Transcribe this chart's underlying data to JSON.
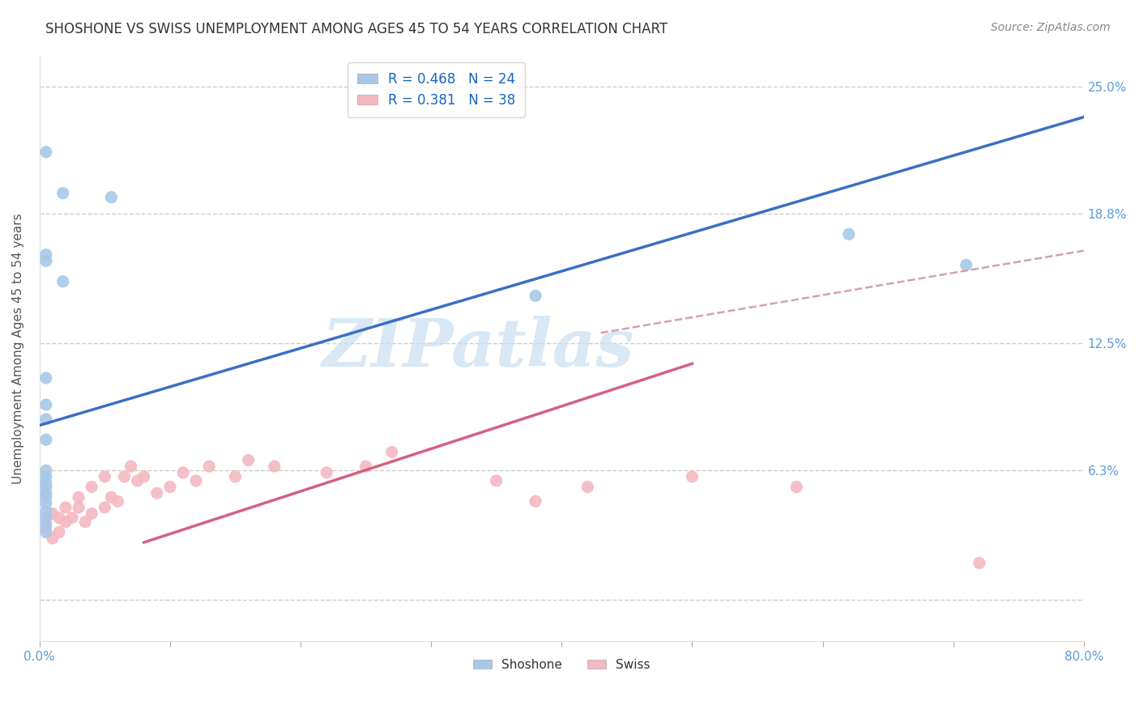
{
  "title": "SHOSHONE VS SWISS UNEMPLOYMENT AMONG AGES 45 TO 54 YEARS CORRELATION CHART",
  "source": "Source: ZipAtlas.com",
  "ylabel": "Unemployment Among Ages 45 to 54 years",
  "xlim": [
    0.0,
    0.8
  ],
  "ylim": [
    -0.02,
    0.265
  ],
  "yticks": [
    0.0,
    0.063,
    0.125,
    0.188,
    0.25
  ],
  "ytick_labels": [
    "",
    "6.3%",
    "12.5%",
    "18.8%",
    "25.0%"
  ],
  "xticks": [
    0.0,
    0.1,
    0.2,
    0.3,
    0.4,
    0.5,
    0.6,
    0.7,
    0.8
  ],
  "xtick_labels": [
    "0.0%",
    "",
    "",
    "",
    "",
    "",
    "",
    "",
    "80.0%"
  ],
  "shoshone_color": "#a8c8e8",
  "swiss_color": "#f4b8c1",
  "shoshone_line_color": "#3a6fc4",
  "swiss_line_color": "#d46080",
  "swiss_dash_color": "#d4a0b0",
  "R_shoshone": 0.468,
  "N_shoshone": 24,
  "R_swiss": 0.381,
  "N_swiss": 38,
  "shoshone_x": [
    0.005,
    0.018,
    0.055,
    0.005,
    0.018,
    0.005,
    0.005,
    0.005,
    0.005,
    0.005,
    0.005,
    0.005,
    0.005,
    0.005,
    0.005,
    0.005,
    0.005,
    0.005,
    0.005,
    0.005,
    0.005,
    0.38,
    0.62,
    0.71
  ],
  "shoshone_y": [
    0.218,
    0.198,
    0.196,
    0.168,
    0.155,
    0.165,
    0.108,
    0.095,
    0.088,
    0.078,
    0.063,
    0.06,
    0.057,
    0.055,
    0.052,
    0.05,
    0.047,
    0.043,
    0.04,
    0.037,
    0.033,
    0.148,
    0.178,
    0.163
  ],
  "swiss_x": [
    0.005,
    0.01,
    0.01,
    0.015,
    0.015,
    0.02,
    0.02,
    0.025,
    0.03,
    0.03,
    0.035,
    0.04,
    0.04,
    0.05,
    0.05,
    0.055,
    0.06,
    0.065,
    0.07,
    0.075,
    0.08,
    0.09,
    0.1,
    0.11,
    0.12,
    0.13,
    0.15,
    0.16,
    0.18,
    0.22,
    0.25,
    0.27,
    0.35,
    0.38,
    0.42,
    0.5,
    0.58,
    0.72
  ],
  "swiss_y": [
    0.035,
    0.042,
    0.03,
    0.04,
    0.033,
    0.038,
    0.045,
    0.04,
    0.045,
    0.05,
    0.038,
    0.042,
    0.055,
    0.045,
    0.06,
    0.05,
    0.048,
    0.06,
    0.065,
    0.058,
    0.06,
    0.052,
    0.055,
    0.062,
    0.058,
    0.065,
    0.06,
    0.068,
    0.065,
    0.062,
    0.065,
    0.072,
    0.058,
    0.048,
    0.055,
    0.06,
    0.055,
    0.018
  ],
  "background_color": "#ffffff",
  "grid_color": "#cccccc",
  "title_fontsize": 12,
  "label_fontsize": 11,
  "tick_fontsize": 11,
  "tick_color": "#5b9bd5",
  "legend_fontsize": 12,
  "watermark_text": "ZIPatlas",
  "watermark_color": "#c8dff0"
}
